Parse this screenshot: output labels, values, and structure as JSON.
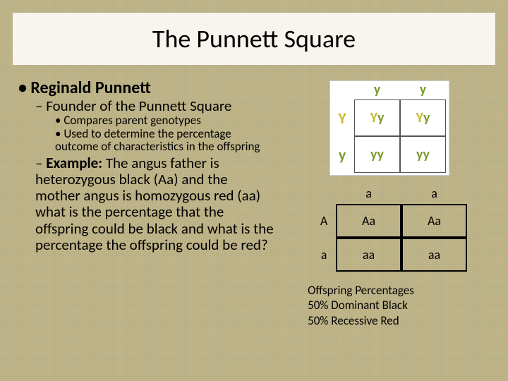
{
  "title": "The Punnett Square",
  "bullets": {
    "l1": "Reginald Punnett",
    "l2a": "Founder of the Punnett Square",
    "l3a": "Compares parent genotypes",
    "l3b": "Used to determine the percentage outcome of characteristics in the offspring",
    "l2b_label": "Example:",
    "l2b_text": " The angus father is heterozygous black (Aa) and the mother angus is homozygous red (aa) what is the percentage that the offspring could be black and what is the percentage the offspring could be red?"
  },
  "yy_square": {
    "top_left": "y",
    "top_right": "y",
    "left_top": "Y",
    "left_bottom": "y",
    "cells": [
      "Yy",
      "Yy",
      "yy",
      "yy"
    ],
    "colors": {
      "Y": "#c9b92b",
      "y": "#7a9a2b",
      "bg": "#ffffff",
      "border": "#555555"
    }
  },
  "aa_square": {
    "top": [
      "a",
      "a"
    ],
    "left": [
      "A",
      "a"
    ],
    "cells": [
      [
        "Aa",
        "Aa"
      ],
      [
        "aa",
        "aa"
      ]
    ],
    "border_color": "#000000"
  },
  "offspring": {
    "line1": "Offspring Percentages",
    "line2": "50% Dominant Black",
    "line3": "50% Recessive Red"
  }
}
